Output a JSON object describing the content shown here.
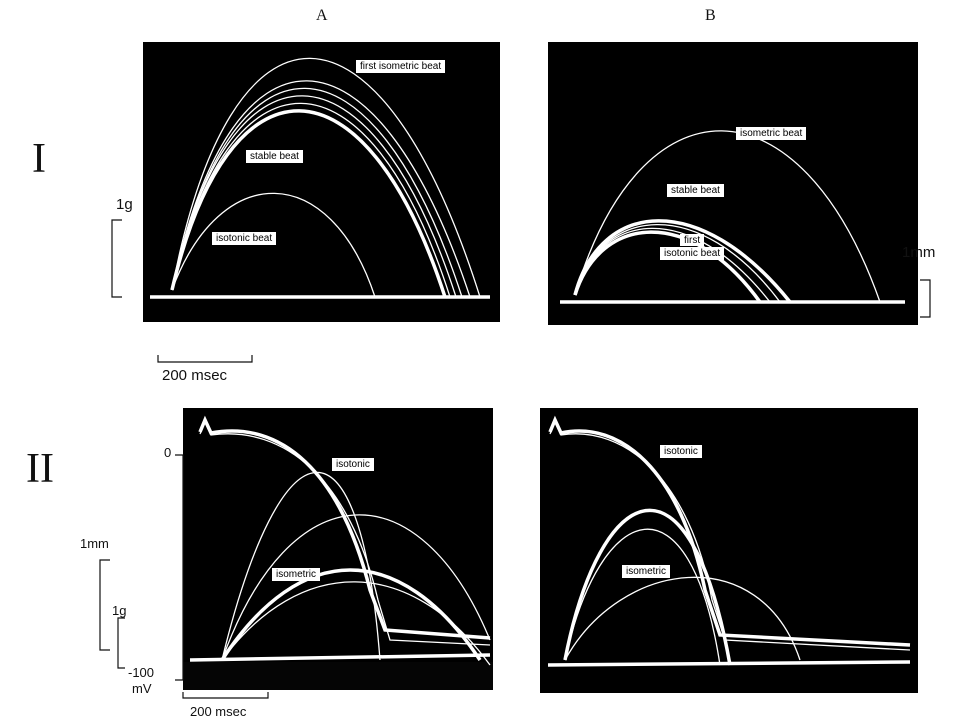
{
  "column_labels": [
    "A",
    "B"
  ],
  "row_labels": [
    "I",
    "II"
  ],
  "row_I": {
    "scale_force": "1g",
    "scale_length": "1mm",
    "time_scale": "200 msec",
    "panel_A": {
      "labels": [
        "first isometric beat",
        "stable beat",
        "isotonic beat"
      ]
    },
    "panel_B": {
      "labels": [
        "isometric beat",
        "stable beat",
        "first",
        "isotonic beat"
      ]
    }
  },
  "row_II": {
    "voltage_top": "0",
    "scale_length": "1mm",
    "scale_force": "1g",
    "voltage_bottom": "-100",
    "voltage_unit": "mV",
    "time_scale": "200 msec",
    "panel_A": {
      "labels": [
        "isotonic",
        "isometric"
      ]
    },
    "panel_B": {
      "labels": [
        "isotonic",
        "isometric"
      ]
    }
  }
}
